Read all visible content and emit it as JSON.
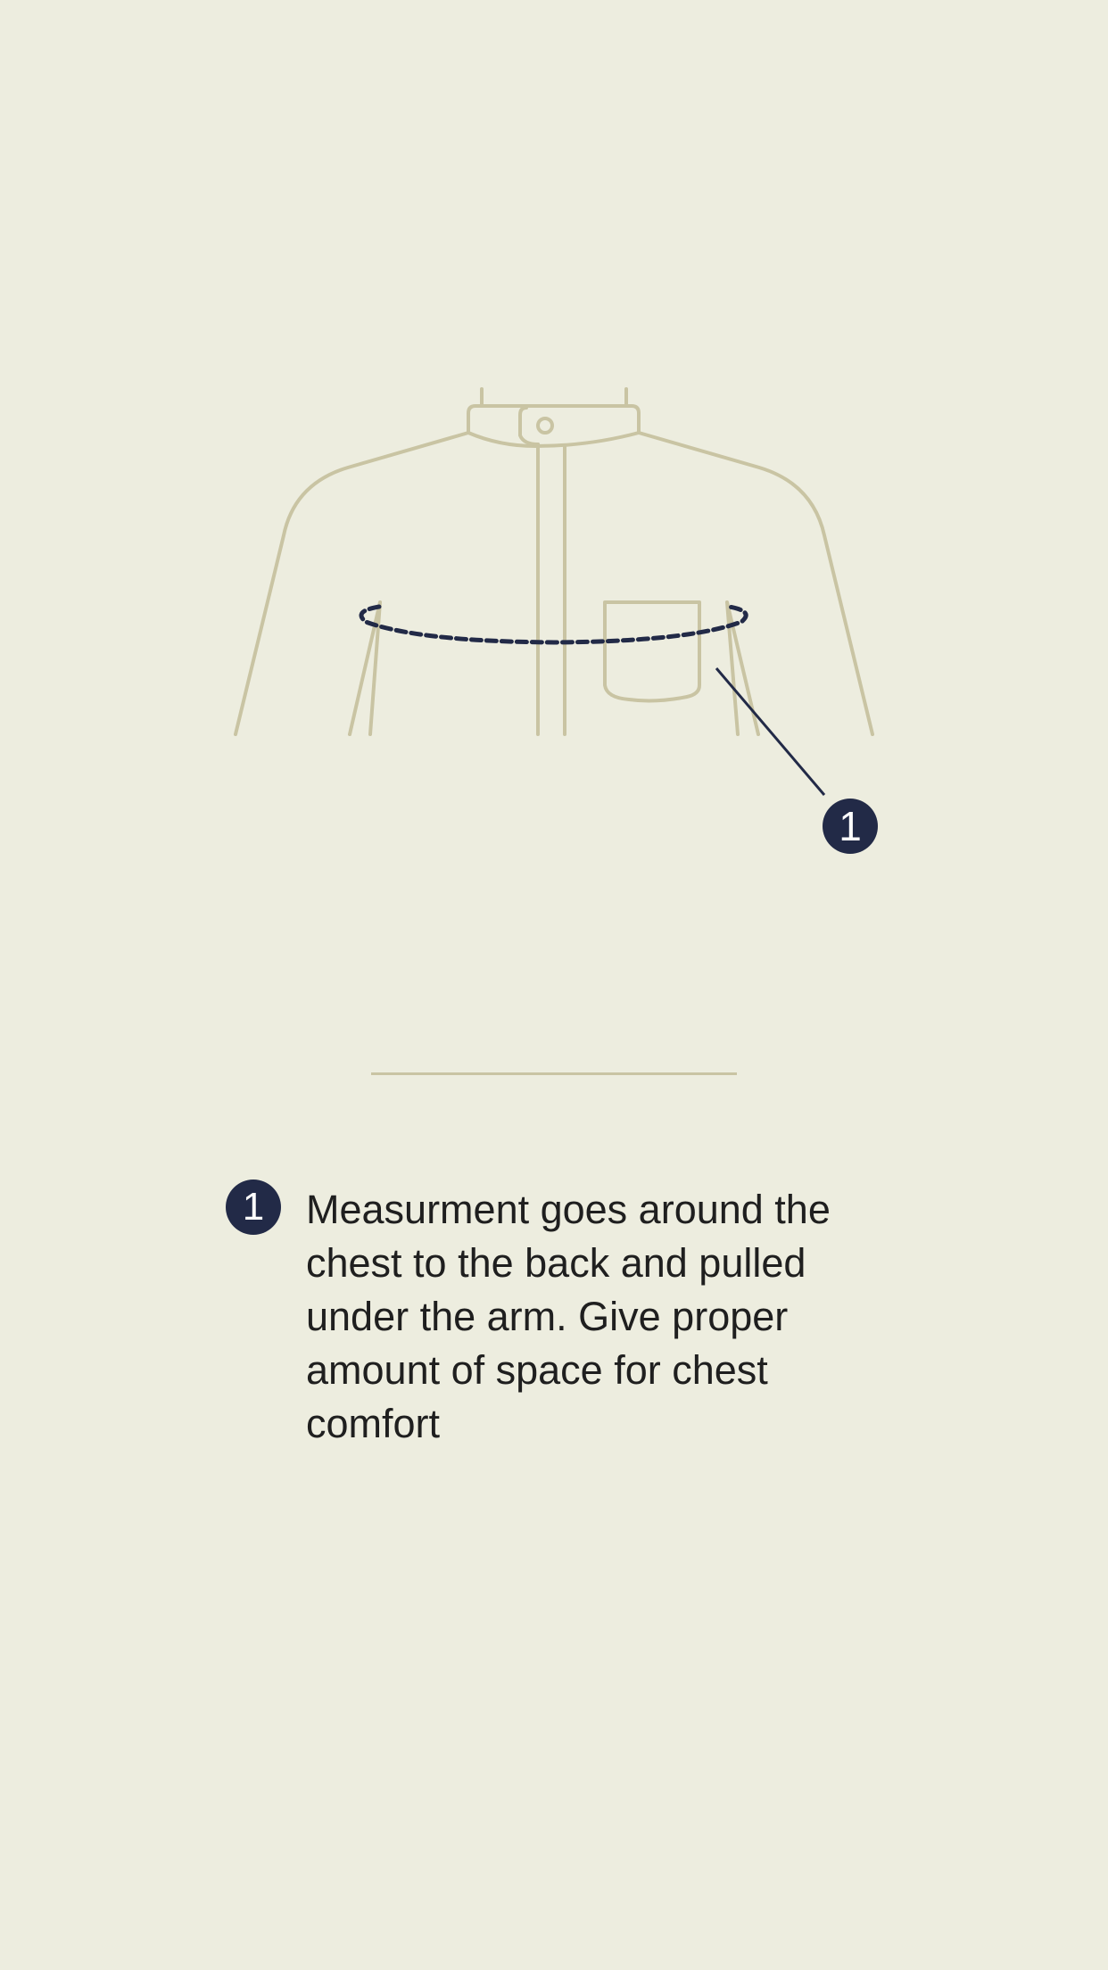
{
  "diagram": {
    "badge_number": "1",
    "icon": "shirt-front-icon"
  },
  "legend": {
    "items": [
      {
        "number": "1",
        "text": "Measurment goes around the chest to the back and pulled under the arm. Give proper amount of space for chest comfort"
      }
    ]
  },
  "colors": {
    "background": "#EDEDDF",
    "outline": "#C9C4A3",
    "accent": "#222A47",
    "text": "#1F1F1F"
  }
}
